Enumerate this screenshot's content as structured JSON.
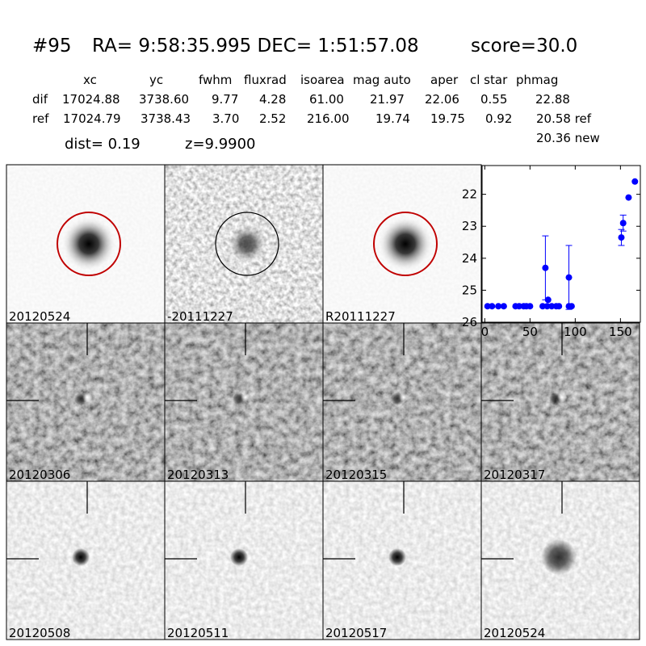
{
  "header": {
    "id": "#95",
    "coords": "RA= 9:58:35.995 DEC= 1:51:57.08",
    "score": "score=30.0"
  },
  "table": {
    "columns": [
      "xc",
      "yc",
      "fwhm",
      "fluxrad",
      "isoarea",
      "mag auto",
      "aper",
      "cl star",
      "phmag"
    ],
    "rows": [
      {
        "label": "dif",
        "cells": [
          "17024.88",
          "3738.60",
          "9.77",
          "4.28",
          "61.00",
          "21.97",
          "22.06",
          "0.55",
          "22.88"
        ]
      },
      {
        "label": "ref",
        "cells": [
          "17024.79",
          "3738.43",
          "3.70",
          "2.52",
          "216.00",
          "19.74",
          "19.75",
          "0.92",
          "20.58 ref"
        ]
      }
    ],
    "extra": "20.36 new"
  },
  "dist": "dist=  0.19",
  "z": "z=9.9900",
  "panels": [
    {
      "label": "20120524"
    },
    {
      "label": "-20111227"
    },
    {
      "label": "R20111227"
    },
    {
      "label": "20120306"
    },
    {
      "label": "20120313"
    },
    {
      "label": "20120315"
    },
    {
      "label": "20120317"
    },
    {
      "label": "20120508"
    },
    {
      "label": "20120511"
    },
    {
      "label": "20120517"
    },
    {
      "label": "20120524"
    }
  ],
  "chart_data": {
    "type": "scatter",
    "color": "#0000ff",
    "x": [
      3,
      8,
      15,
      21,
      34,
      38,
      43,
      46,
      50,
      64,
      67,
      69,
      70,
      74,
      79,
      82,
      93,
      93,
      96,
      151,
      153,
      159,
      166
    ],
    "values": [
      25.5,
      25.5,
      25.5,
      25.5,
      25.5,
      25.5,
      25.5,
      25.5,
      25.5,
      25.5,
      24.3,
      25.5,
      25.3,
      25.5,
      25.5,
      25.5,
      24.6,
      25.5,
      25.5,
      23.35,
      22.9,
      22.1,
      21.6
    ],
    "errors": [
      null,
      null,
      null,
      null,
      null,
      null,
      null,
      null,
      null,
      null,
      1.0,
      null,
      null,
      null,
      null,
      null,
      1.0,
      null,
      null,
      0.25,
      0.25,
      null,
      null
    ],
    "xlim": [
      -3,
      172
    ],
    "ylim": [
      26,
      21.1
    ],
    "xticks": [
      0,
      50,
      100,
      150
    ],
    "yticks": [
      22,
      23,
      24,
      25,
      26
    ]
  }
}
